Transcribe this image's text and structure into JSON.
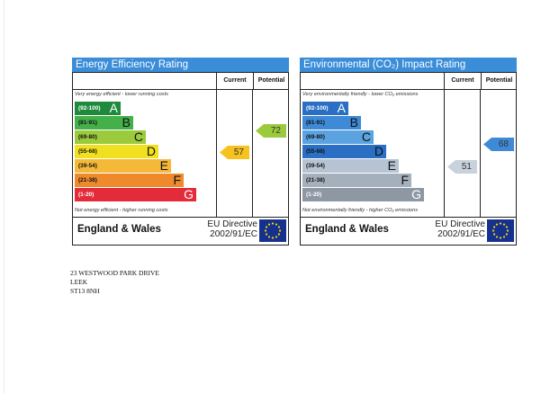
{
  "energy": {
    "title": "Energy Efficiency Rating",
    "current_header": "Current",
    "potential_header": "Potential",
    "top_note": "Very energy efficient - lower running costs",
    "bottom_note": "Not energy efficient - higher running costs",
    "title_color": "#3a8dd8",
    "bands": [
      {
        "range": "(92-100)",
        "letter": "A",
        "color": "#1e8a3c",
        "text_color": "#ffffff"
      },
      {
        "range": "(81-91)",
        "letter": "B",
        "color": "#44b04a",
        "text_color": "#111111"
      },
      {
        "range": "(69-80)",
        "letter": "C",
        "color": "#9bcb3d",
        "text_color": "#111111"
      },
      {
        "range": "(55-68)",
        "letter": "D",
        "color": "#f0e020",
        "text_color": "#111111"
      },
      {
        "range": "(39-54)",
        "letter": "E",
        "color": "#f5b93a",
        "text_color": "#111111"
      },
      {
        "range": "(21-38)",
        "letter": "F",
        "color": "#ee8a2c",
        "text_color": "#111111"
      },
      {
        "range": "(1-20)",
        "letter": "G",
        "color": "#e32b3a",
        "text_color": "#ffffff"
      }
    ],
    "current": {
      "value": "57",
      "band": "D",
      "color": "#f5c21e",
      "text_color": "#333333"
    },
    "potential": {
      "value": "72",
      "band": "C",
      "color": "#9bcb3d",
      "text_color": "#333333"
    },
    "region": "England & Wales",
    "directive_line1": "EU Directive",
    "directive_line2": "2002/91/EC"
  },
  "environment": {
    "title": "Environmental (CO₂) Impact Rating",
    "current_header": "Current",
    "potential_header": "Potential",
    "top_note": "Very environmentally friendly - lower CO₂ emissions",
    "bottom_note": "Not environmentally friendly - higher CO₂ emissions",
    "title_color": "#3a8dd8",
    "bands": [
      {
        "range": "(92-100)",
        "letter": "A",
        "color": "#2a6fc4",
        "text_color": "#ffffff"
      },
      {
        "range": "(81-91)",
        "letter": "B",
        "color": "#3f8ad6",
        "text_color": "#111111"
      },
      {
        "range": "(69-80)",
        "letter": "C",
        "color": "#5aa3e0",
        "text_color": "#111111"
      },
      {
        "range": "(55-68)",
        "letter": "D",
        "color": "#2a6fc4",
        "text_color": "#111111"
      },
      {
        "range": "(39-54)",
        "letter": "E",
        "color": "#b6c3d2",
        "text_color": "#111111"
      },
      {
        "range": "(21-38)",
        "letter": "F",
        "color": "#a5b0bd",
        "text_color": "#111111"
      },
      {
        "range": "(1-20)",
        "letter": "G",
        "color": "#8e98a5",
        "text_color": "#ffffff"
      }
    ],
    "current": {
      "value": "51",
      "band": "E",
      "color": "#c9d1dc",
      "text_color": "#333333"
    },
    "potential": {
      "value": "68",
      "band": "D",
      "color": "#3f8ad6",
      "text_color": "#333333"
    },
    "region": "England & Wales",
    "directive_line1": "EU Directive",
    "directive_line2": "2002/91/EC"
  },
  "address": {
    "line1": "23 WESTWOOD PARK DRIVE",
    "line2": "LEEK",
    "line3": "ST13 8NH"
  }
}
